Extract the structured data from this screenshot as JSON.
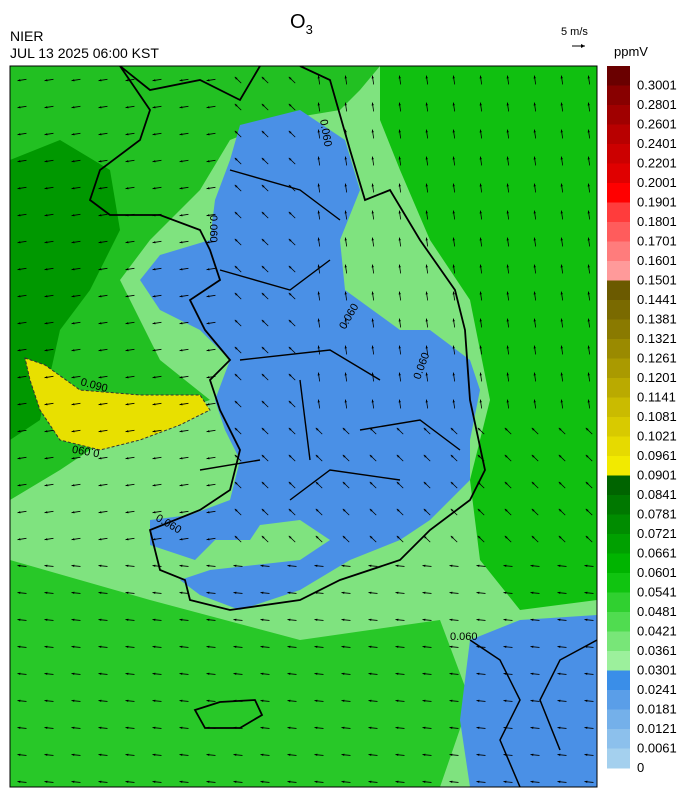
{
  "header": {
    "title_main": "O",
    "title_subscript": "3",
    "agency": "NIER",
    "timestamp": "JUL 13 2025 06:00 KST",
    "vector_scale": "5 m/s"
  },
  "colorbar": {
    "unit": "ppmV",
    "labels": [
      "0.3001",
      "0.2801",
      "0.2601",
      "0.2401",
      "0.2201",
      "0.2001",
      "0.1901",
      "0.1801",
      "0.1701",
      "0.1601",
      "0.1501",
      "0.1441",
      "0.1381",
      "0.1321",
      "0.1261",
      "0.1201",
      "0.1141",
      "0.1081",
      "0.1021",
      "0.0961",
      "0.0901",
      "0.0841",
      "0.0781",
      "0.0721",
      "0.0661",
      "0.0601",
      "0.0541",
      "0.0481",
      "0.0421",
      "0.0361",
      "0.0301",
      "0.0241",
      "0.0181",
      "0.0121",
      "0.0061",
      "0"
    ],
    "colors": [
      "#6a0000",
      "#880000",
      "#a00000",
      "#b80000",
      "#cc0000",
      "#e00000",
      "#ff0000",
      "#ff3c3c",
      "#ff5c5c",
      "#ff7c7c",
      "#ff9a9a",
      "#6b5a00",
      "#7a6a00",
      "#8a7a00",
      "#9a8a00",
      "#aa9a00",
      "#baaa00",
      "#cabb00",
      "#d8ca00",
      "#e6da00",
      "#f2ea00",
      "#006400",
      "#007800",
      "#008c00",
      "#00a000",
      "#00b400",
      "#10c410",
      "#30d030",
      "#50dc50",
      "#78e678",
      "#9cf09c",
      "#3a8ee8",
      "#5a9ee8",
      "#74b0ea",
      "#8cc0ec",
      "#a4d0ee"
    ]
  },
  "contour_labels": [
    "0.090",
    "0.090",
    "0.060",
    "0.060",
    "0.060",
    "0.060",
    "0.060",
    "0.060"
  ]
}
